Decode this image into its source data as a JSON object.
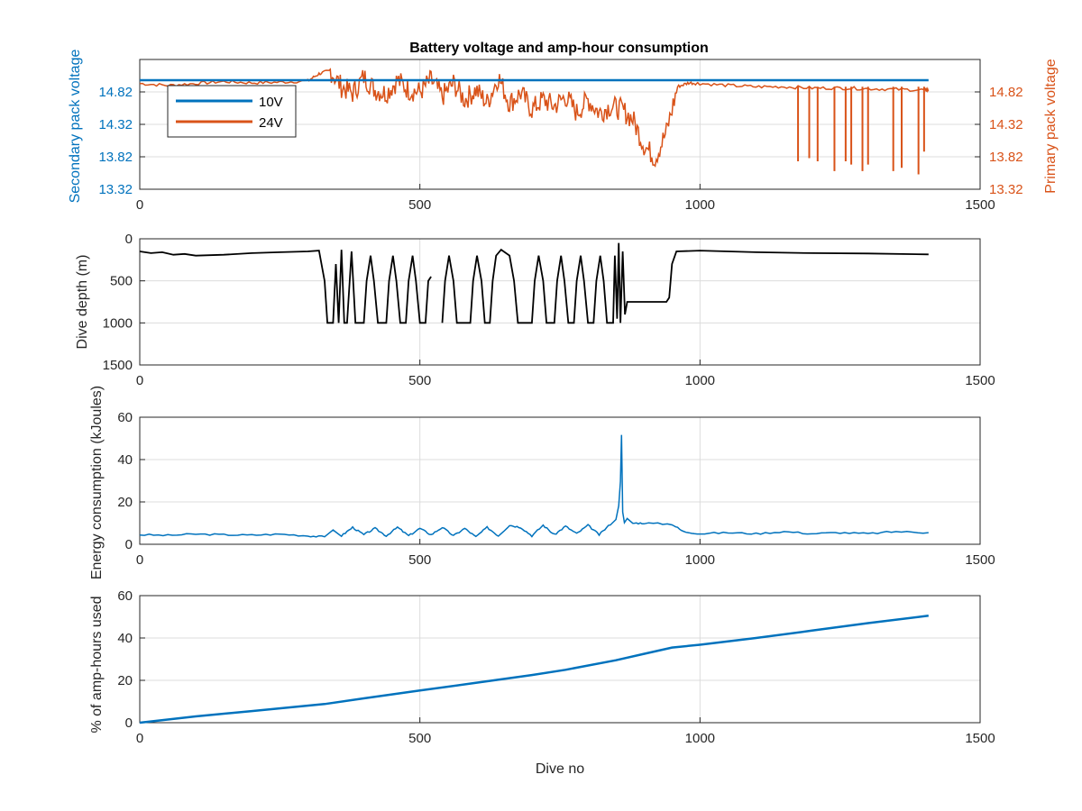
{
  "colors": {
    "secondary": "#0072BD",
    "primary": "#D95319",
    "black": "#000000",
    "grid": "#dcdcdc",
    "axis": "#262626"
  },
  "chart_data": [
    {
      "type": "line",
      "title": "Battery voltage and amp-hour consumption",
      "xlabel": "",
      "ylabel_left": "Secondary pack voltage",
      "ylabel_right": "Primary pack voltage",
      "xlim": [
        0,
        1500
      ],
      "xticks": [
        "0",
        "500",
        "1000",
        "1500"
      ],
      "ylim_left": [
        13.32,
        15.32
      ],
      "yticks_left": [
        "13.32",
        "13.82",
        "14.32",
        "14.82"
      ],
      "ylim_right": [
        13.32,
        15.32
      ],
      "yticks_right": [
        "13.32",
        "13.82",
        "14.32",
        "14.82"
      ],
      "grid": true,
      "legend": {
        "position": "top-left",
        "entries": [
          "10V",
          "24V"
        ]
      },
      "series": [
        {
          "name": "10V",
          "axis": "left",
          "x": [
            0,
            1408
          ],
          "values": [
            15.0,
            15.0
          ]
        },
        {
          "name": "24V",
          "axis": "right",
          "x": [
            0,
            50,
            100,
            150,
            200,
            250,
            300,
            320,
            340,
            360,
            380,
            400,
            420,
            440,
            460,
            480,
            500,
            520,
            540,
            560,
            580,
            600,
            620,
            640,
            660,
            680,
            700,
            720,
            740,
            760,
            780,
            800,
            820,
            840,
            860,
            880,
            900,
            920,
            940,
            960,
            980,
            1000,
            1050,
            1100,
            1150,
            1200,
            1250,
            1300,
            1350,
            1400,
            1408
          ],
          "values": [
            14.95,
            14.92,
            14.95,
            14.98,
            14.96,
            14.97,
            14.99,
            15.1,
            15.15,
            14.9,
            14.8,
            15.05,
            14.85,
            14.8,
            15.0,
            14.85,
            14.82,
            15.0,
            14.75,
            14.95,
            14.7,
            14.85,
            14.65,
            15.05,
            14.65,
            14.8,
            14.55,
            14.7,
            14.6,
            14.75,
            14.5,
            14.7,
            14.5,
            14.6,
            14.55,
            14.4,
            14.0,
            13.8,
            14.2,
            14.9,
            14.96,
            14.95,
            14.92,
            14.9,
            14.9,
            14.88,
            14.88,
            14.87,
            14.86,
            14.85,
            14.85
          ],
          "dropouts": [
            {
              "x": 1175,
              "min": 13.75
            },
            {
              "x": 1195,
              "min": 13.8
            },
            {
              "x": 1210,
              "min": 13.75
            },
            {
              "x": 1240,
              "min": 13.6
            },
            {
              "x": 1260,
              "min": 13.75
            },
            {
              "x": 1270,
              "min": 13.7
            },
            {
              "x": 1290,
              "min": 13.6
            },
            {
              "x": 1300,
              "min": 13.7
            },
            {
              "x": 1345,
              "min": 13.6
            },
            {
              "x": 1360,
              "min": 13.65
            },
            {
              "x": 1390,
              "min": 13.55
            },
            {
              "x": 1400,
              "min": 13.9
            }
          ]
        }
      ]
    },
    {
      "type": "line",
      "title": "",
      "xlabel": "",
      "ylabel": "Dive depth (m)",
      "xlim": [
        0,
        1500
      ],
      "xticks": [
        "0",
        "500",
        "1000",
        "1500"
      ],
      "ylim": [
        0,
        1500
      ],
      "y_reversed": true,
      "yticks": [
        "0",
        "500",
        "1000",
        "1500"
      ],
      "grid": true,
      "series": [
        {
          "name": "",
          "color": "black",
          "x": [
            0,
            20,
            40,
            60,
            80,
            100,
            150,
            200,
            250,
            300,
            320
          ],
          "values": [
            150,
            170,
            160,
            190,
            180,
            200,
            190,
            170,
            160,
            150,
            140
          ],
          "v_segments": [
            [
              320,
              140
            ],
            [
              330,
              500
            ],
            [
              335,
              1000
            ],
            [
              345,
              1000
            ],
            [
              350,
              300
            ],
            [
              355,
              1000
            ],
            [
              360,
              130
            ],
            [
              365,
              1000
            ],
            [
              370,
              1000
            ],
            [
              378,
              150
            ],
            [
              385,
              1000
            ],
            [
              400,
              1000
            ],
            [
              405,
              500
            ],
            [
              412,
              200
            ],
            [
              418,
              500
            ],
            [
              425,
              1000
            ],
            [
              440,
              1000
            ],
            [
              445,
              500
            ],
            [
              452,
              200
            ],
            [
              458,
              500
            ],
            [
              465,
              1000
            ],
            [
              475,
              1000
            ],
            [
              480,
              500
            ],
            [
              487,
              200
            ],
            [
              493,
              500
            ],
            [
              500,
              1000
            ],
            [
              510,
              1000
            ],
            [
              515,
              500
            ],
            [
              520,
              450
            ]
          ],
          "v_segments2": [
            [
              540,
              1000
            ],
            [
              545,
              500
            ],
            [
              552,
              200
            ],
            [
              560,
              500
            ],
            [
              566,
              1000
            ],
            [
              590,
              1000
            ],
            [
              595,
              500
            ],
            [
              602,
              200
            ],
            [
              610,
              500
            ],
            [
              616,
              1000
            ],
            [
              625,
              1000
            ],
            [
              630,
              500
            ],
            [
              636,
              200
            ],
            [
              645,
              130
            ],
            [
              660,
              200
            ],
            [
              668,
              500
            ],
            [
              675,
              1000
            ],
            [
              700,
              1000
            ],
            [
              705,
              500
            ],
            [
              712,
              200
            ],
            [
              720,
              500
            ],
            [
              726,
              1000
            ],
            [
              740,
              1000
            ],
            [
              745,
              500
            ],
            [
              752,
              200
            ],
            [
              758,
              500
            ],
            [
              765,
              1000
            ],
            [
              775,
              1000
            ],
            [
              780,
              500
            ],
            [
              787,
              200
            ],
            [
              793,
              500
            ],
            [
              800,
              1000
            ],
            [
              810,
              1000
            ],
            [
              815,
              500
            ],
            [
              822,
              200
            ],
            [
              828,
              500
            ],
            [
              834,
              1000
            ],
            [
              845,
              1000
            ],
            [
              848,
              200
            ],
            [
              852,
              950
            ],
            [
              855,
              50
            ],
            [
              858,
              1000
            ],
            [
              862,
              150
            ],
            [
              866,
              900
            ],
            [
              870,
              750
            ],
            [
              900,
              750
            ],
            [
              940,
              750
            ],
            [
              945,
              700
            ],
            [
              950,
              300
            ],
            [
              958,
              150
            ],
            [
              1000,
              140
            ],
            [
              1100,
              160
            ],
            [
              1200,
              170
            ],
            [
              1300,
              175
            ],
            [
              1408,
              185
            ]
          ]
        }
      ]
    },
    {
      "type": "line",
      "title": "",
      "xlabel": "",
      "ylabel": "Energy consumption (kJoules)",
      "xlim": [
        0,
        1500
      ],
      "xticks": [
        "0",
        "500",
        "1000",
        "1500"
      ],
      "ylim": [
        0,
        60
      ],
      "yticks": [
        "0",
        "20",
        "40",
        "60"
      ],
      "grid": true,
      "series": [
        {
          "name": "",
          "color": "secondary",
          "x": [
            0,
            50,
            100,
            150,
            200,
            250,
            300,
            330,
            345,
            360,
            380,
            400,
            420,
            440,
            460,
            480,
            500,
            520,
            540,
            560,
            580,
            600,
            620,
            640,
            660,
            680,
            700,
            720,
            740,
            760,
            780,
            800,
            820,
            840,
            850,
            855,
            858,
            860,
            862,
            865,
            870,
            880,
            900,
            950,
            970,
            1000,
            1050,
            1100,
            1150,
            1200,
            1250,
            1300,
            1350,
            1408
          ],
          "values": [
            4.5,
            4.2,
            4.8,
            4.5,
            4.3,
            4.8,
            4.0,
            3.5,
            7.0,
            4.0,
            8.0,
            4.5,
            7.5,
            4.0,
            8.0,
            4.0,
            7.5,
            4.5,
            8.0,
            4.0,
            7.5,
            3.5,
            8.0,
            4.0,
            9.0,
            8.0,
            4.0,
            9.0,
            4.5,
            8.5,
            5.0,
            9.0,
            4.5,
            9.5,
            12,
            18,
            30,
            52,
            15,
            10,
            12,
            10,
            10,
            9.5,
            6,
            5,
            5.5,
            5,
            6,
            5,
            5.5,
            5,
            6,
            5.5
          ]
        }
      ]
    },
    {
      "type": "line",
      "title": "",
      "xlabel": "Dive no",
      "ylabel": "% of amp-hours used",
      "xlim": [
        0,
        1500
      ],
      "xticks": [
        "0",
        "500",
        "1000",
        "1500"
      ],
      "ylim": [
        0,
        60
      ],
      "yticks": [
        "0",
        "20",
        "40",
        "60"
      ],
      "grid": true,
      "series": [
        {
          "name": "",
          "color": "secondary",
          "x": [
            0,
            100,
            200,
            330,
            400,
            500,
            600,
            700,
            760,
            850,
            900,
            950,
            1000,
            1100,
            1200,
            1300,
            1408
          ],
          "values": [
            0,
            3.0,
            5.5,
            8.8,
            11.5,
            15.2,
            18.8,
            22.5,
            25.0,
            29.5,
            32.5,
            35.5,
            36.8,
            40.0,
            43.5,
            47.0,
            50.5
          ]
        }
      ]
    }
  ]
}
